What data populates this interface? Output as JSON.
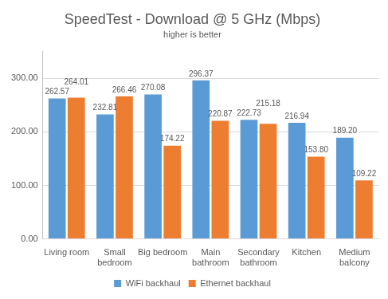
{
  "chart_data": {
    "type": "bar",
    "title": "SpeedTest - Download @ 5 GHz (Mbps)",
    "subtitle": "higher is better",
    "categories": [
      "Living room",
      "Small bedroom",
      "Big bedroom",
      "Main bathroom",
      "Secondary bathroom",
      "Kitchen",
      "Medium balcony"
    ],
    "series": [
      {
        "name": "WiFi backhaul",
        "color": "#5b9bd5",
        "values": [
          262.57,
          232.81,
          270.08,
          296.37,
          222.73,
          216.94,
          189.2
        ],
        "value_labels": [
          "262.57",
          "232.81",
          "270.08",
          "296.37",
          "222.73",
          "216.94",
          "189.20"
        ]
      },
      {
        "name": "Ethernet backhaul",
        "color": "#ed7d31",
        "values": [
          264.01,
          266.46,
          174.22,
          220.87,
          215.18,
          153.8,
          109.22
        ],
        "value_labels": [
          "264.01",
          "266.46",
          "174.22",
          "220.87",
          "215.18",
          "153.80",
          "109.22"
        ]
      }
    ],
    "ylim": [
      0,
      350
    ],
    "yticks": [
      {
        "value": 0,
        "label": "0.00"
      },
      {
        "value": 100,
        "label": "100.00"
      },
      {
        "value": 200,
        "label": "200.00"
      },
      {
        "value": 300,
        "label": "300.00"
      }
    ],
    "grid": true,
    "legend": "bottom",
    "data_labels": true
  }
}
